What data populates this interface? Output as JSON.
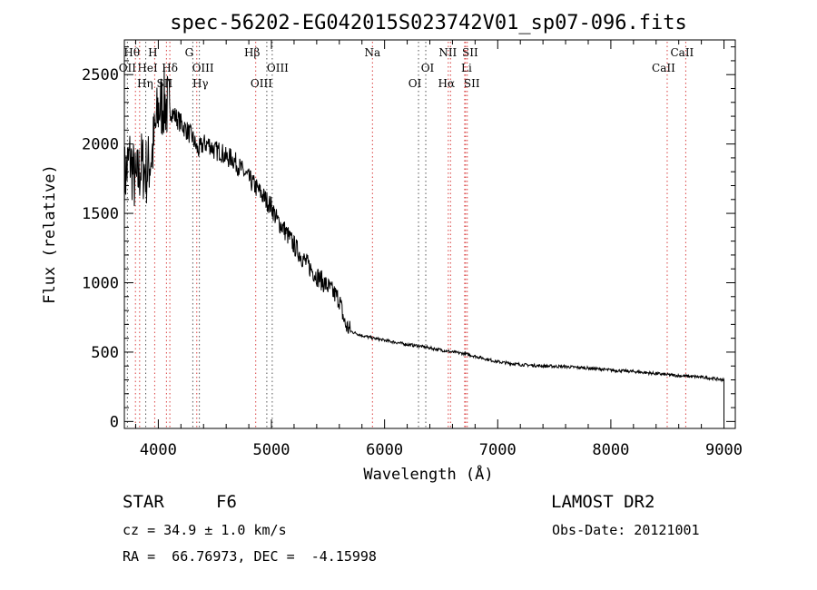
{
  "chart_data": {
    "type": "line",
    "title": "spec-56202-EG042015S023742V01_sp07-096.fits",
    "xlabel": "Wavelength (Å)",
    "ylabel": "Flux (relative)",
    "xlim": [
      3700,
      9100
    ],
    "ylim": [
      -50,
      2750
    ],
    "xticks": [
      4000,
      5000,
      6000,
      7000,
      8000,
      9000
    ],
    "yticks": [
      0,
      500,
      1000,
      1500,
      2000,
      2500
    ],
    "grid": false,
    "series": [
      {
        "x": [
          3700,
          3750,
          3800,
          3850,
          3900,
          3950,
          4000,
          4050,
          4100,
          4150,
          4200,
          4250,
          4300,
          4350,
          4400,
          4450,
          4500,
          4550,
          4600,
          4650,
          4700,
          4750,
          4800,
          4850,
          4900,
          4950,
          5000,
          5050,
          5100,
          5200,
          5300,
          5400,
          5500,
          5600,
          5650,
          5700,
          5800,
          5900,
          6000,
          6100,
          6200,
          6300,
          6400,
          6500,
          6600,
          6700,
          6800,
          6900,
          7000,
          7200,
          7400,
          7600,
          7800,
          8000,
          8200,
          8400,
          8600,
          8800,
          9000
        ],
        "y": [
          1750,
          1900,
          1700,
          1850,
          1800,
          1950,
          2250,
          2300,
          2250,
          2200,
          2150,
          2100,
          2050,
          1950,
          2000,
          2000,
          1950,
          1950,
          1900,
          1900,
          1850,
          1800,
          1750,
          1700,
          1650,
          1600,
          1550,
          1450,
          1400,
          1270,
          1150,
          1050,
          970,
          880,
          700,
          650,
          620,
          600,
          585,
          570,
          555,
          545,
          530,
          515,
          500,
          490,
          470,
          450,
          430,
          410,
          400,
          395,
          385,
          370,
          360,
          345,
          330,
          320,
          300
        ]
      }
    ],
    "line_markers": [
      {
        "name": "Hθ",
        "x": 3798
      },
      {
        "name": "H",
        "x": 3968
      },
      {
        "name": "HeI",
        "x": 3889
      },
      {
        "name": "Hδ",
        "x": 4102
      },
      {
        "name": "OII",
        "x": 3727
      },
      {
        "name": "Hη",
        "x": 3835
      },
      {
        "name": "SII",
        "x": 4072
      },
      {
        "name": "G",
        "x": 4305
      },
      {
        "name": "OIII",
        "x": 4363
      },
      {
        "name": "Hγ",
        "x": 4340
      },
      {
        "name": "Hβ",
        "x": 4861
      },
      {
        "name": "OIII",
        "x": 5007
      },
      {
        "name": "OIII",
        "x": 4959
      },
      {
        "name": "Na",
        "x": 5893
      },
      {
        "name": "OI",
        "x": 6364
      },
      {
        "name": "OI",
        "x": 6300
      },
      {
        "name": "NII",
        "x": 6583
      },
      {
        "name": "SII",
        "x": 6716
      },
      {
        "name": "Li",
        "x": 6708
      },
      {
        "name": "Hα",
        "x": 6563
      },
      {
        "name": "SII",
        "x": 6731
      },
      {
        "name": "CaII",
        "x": 8662
      },
      {
        "name": "CaII",
        "x": 8498
      }
    ]
  },
  "info": {
    "class": "STAR",
    "subclass": "F6",
    "survey": "LAMOST DR2",
    "cz": "cz = 34.9 ± 1.0 km/s",
    "obsdate": "Obs-Date: 20121001",
    "radec": "RA =  66.76973, DEC =  -4.15998"
  }
}
